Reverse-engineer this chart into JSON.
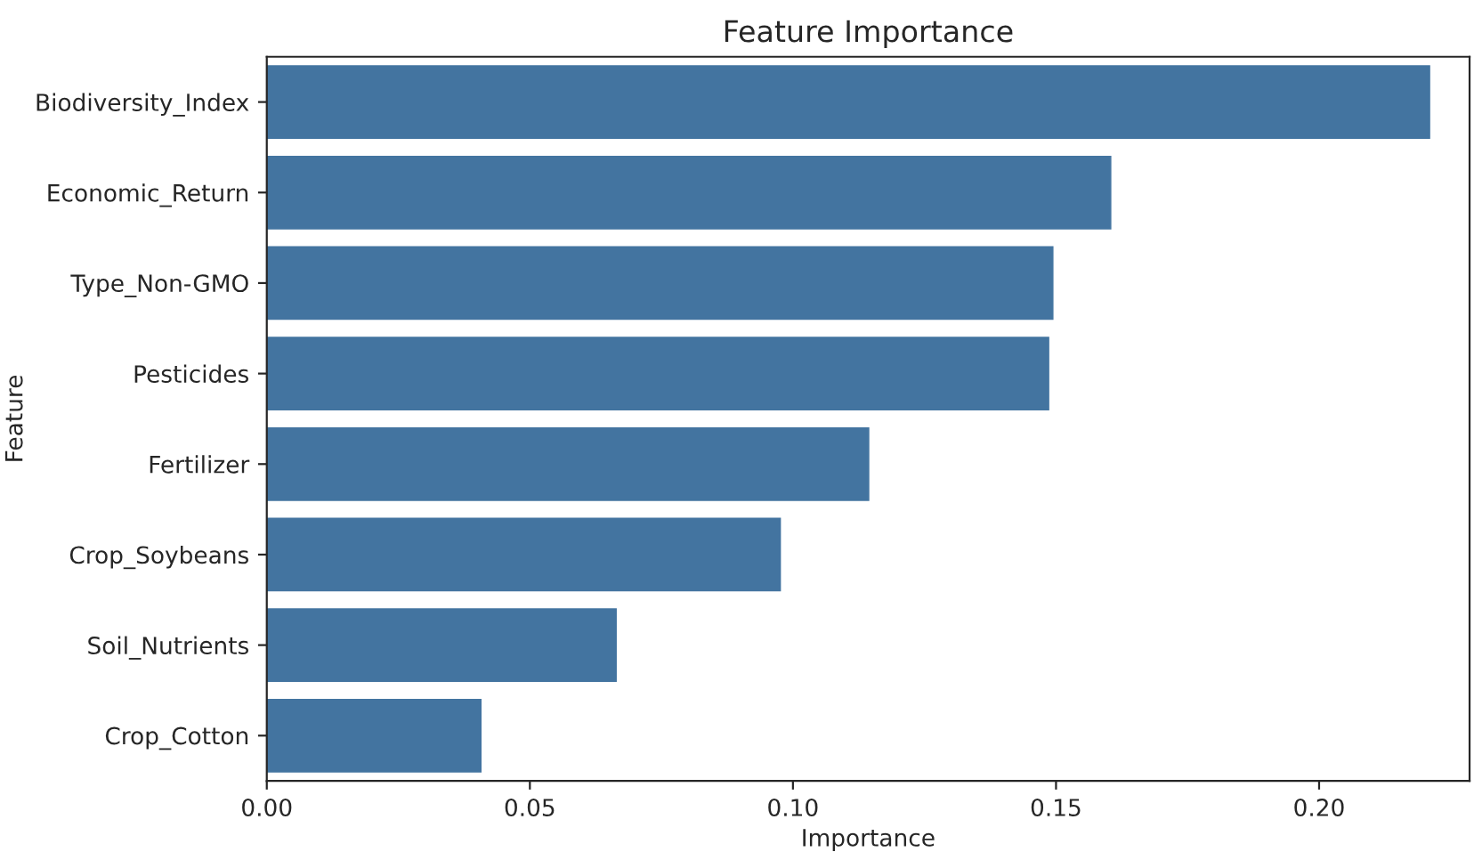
{
  "chart_data": {
    "type": "bar",
    "orientation": "horizontal",
    "title": "Feature Importance",
    "xlabel": "Importance",
    "ylabel": "Feature",
    "categories": [
      "Biodiversity_Index",
      "Economic_Return",
      "Type_Non-GMO",
      "Pesticides",
      "Fertilizer",
      "Crop_Soybeans",
      "Soil_Nutrients",
      "Crop_Cotton"
    ],
    "values": [
      0.221,
      0.1604,
      0.1494,
      0.1486,
      0.1144,
      0.0976,
      0.0664,
      0.0407
    ],
    "color": "#4374a0",
    "xlim": [
      0,
      0.2286
    ],
    "xticks": [
      {
        "value": 0,
        "label": "0.00"
      },
      {
        "value": 0.05,
        "label": "0.05"
      },
      {
        "value": 0.1,
        "label": "0.10"
      },
      {
        "value": 0.15,
        "label": "0.15"
      },
      {
        "value": 0.2,
        "label": "0.20"
      }
    ],
    "grid": false,
    "legend": false
  }
}
